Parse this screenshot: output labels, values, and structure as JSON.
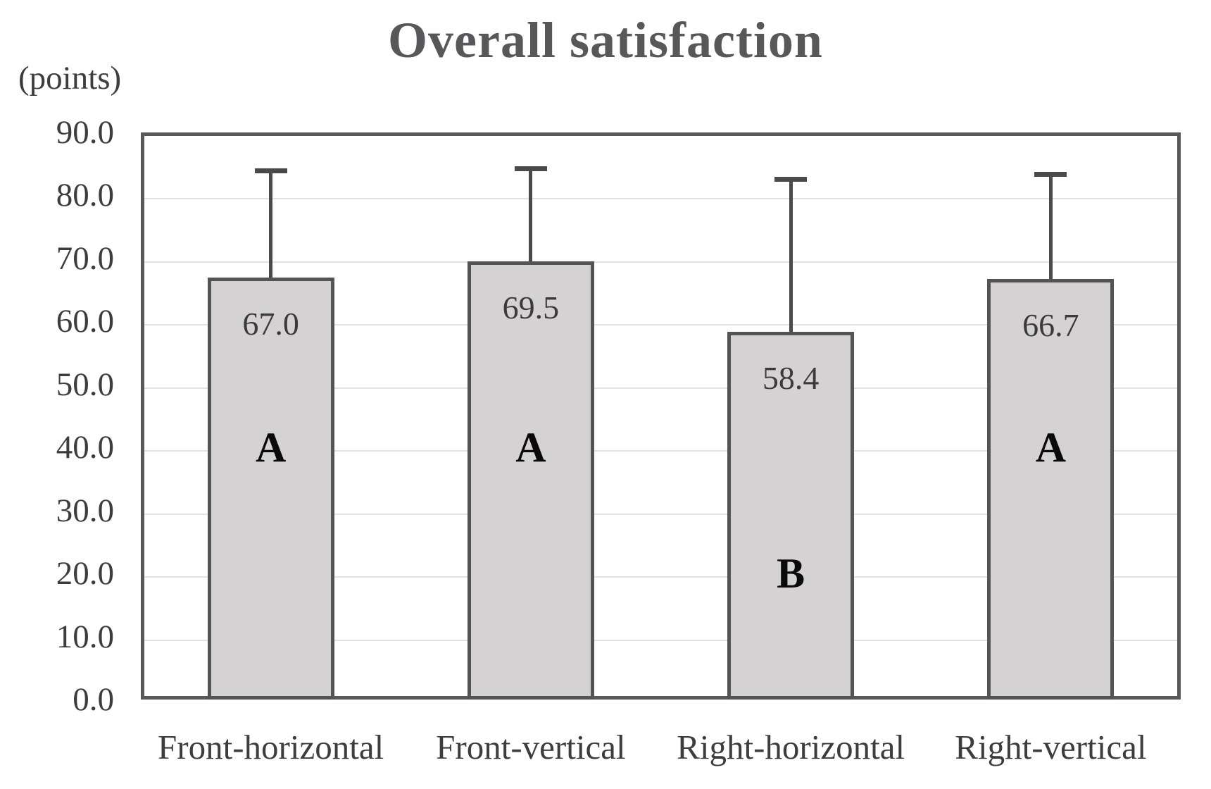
{
  "chart_data": {
    "type": "bar",
    "title": "Overall satisfaction",
    "ylabel": "(points)",
    "xlabel": "",
    "categories": [
      "Front-horizontal",
      "Front-vertical",
      "Right-horizontal",
      "Right-vertical"
    ],
    "values": [
      67.0,
      69.5,
      58.4,
      66.7
    ],
    "value_labels": [
      "67.0",
      "69.5",
      "58.4",
      "66.7"
    ],
    "significance_letters": [
      "A",
      "A",
      "B",
      "A"
    ],
    "significance_letter_y_positions": [
      40,
      40,
      20,
      40
    ],
    "error_bar_tops": [
      84.0,
      84.3,
      82.6,
      83.4
    ],
    "ylim": [
      0,
      90
    ],
    "ytick_step": 10,
    "yticks": [
      "90.0",
      "80.0",
      "70.0",
      "60.0",
      "50.0",
      "40.0",
      "30.0",
      "20.0",
      "10.0",
      "0.0"
    ],
    "grid": true,
    "legend": false,
    "colors": {
      "bar_fill": "#d4d2d2",
      "bar_border": "#545454",
      "error_bar": "#4a4a4a",
      "gridline": "#e2e2e2",
      "plot_border": "#595959",
      "title_text": "#58585a",
      "axis_text": "#3d3d3d",
      "letter_text": "#0a0a0a"
    }
  }
}
